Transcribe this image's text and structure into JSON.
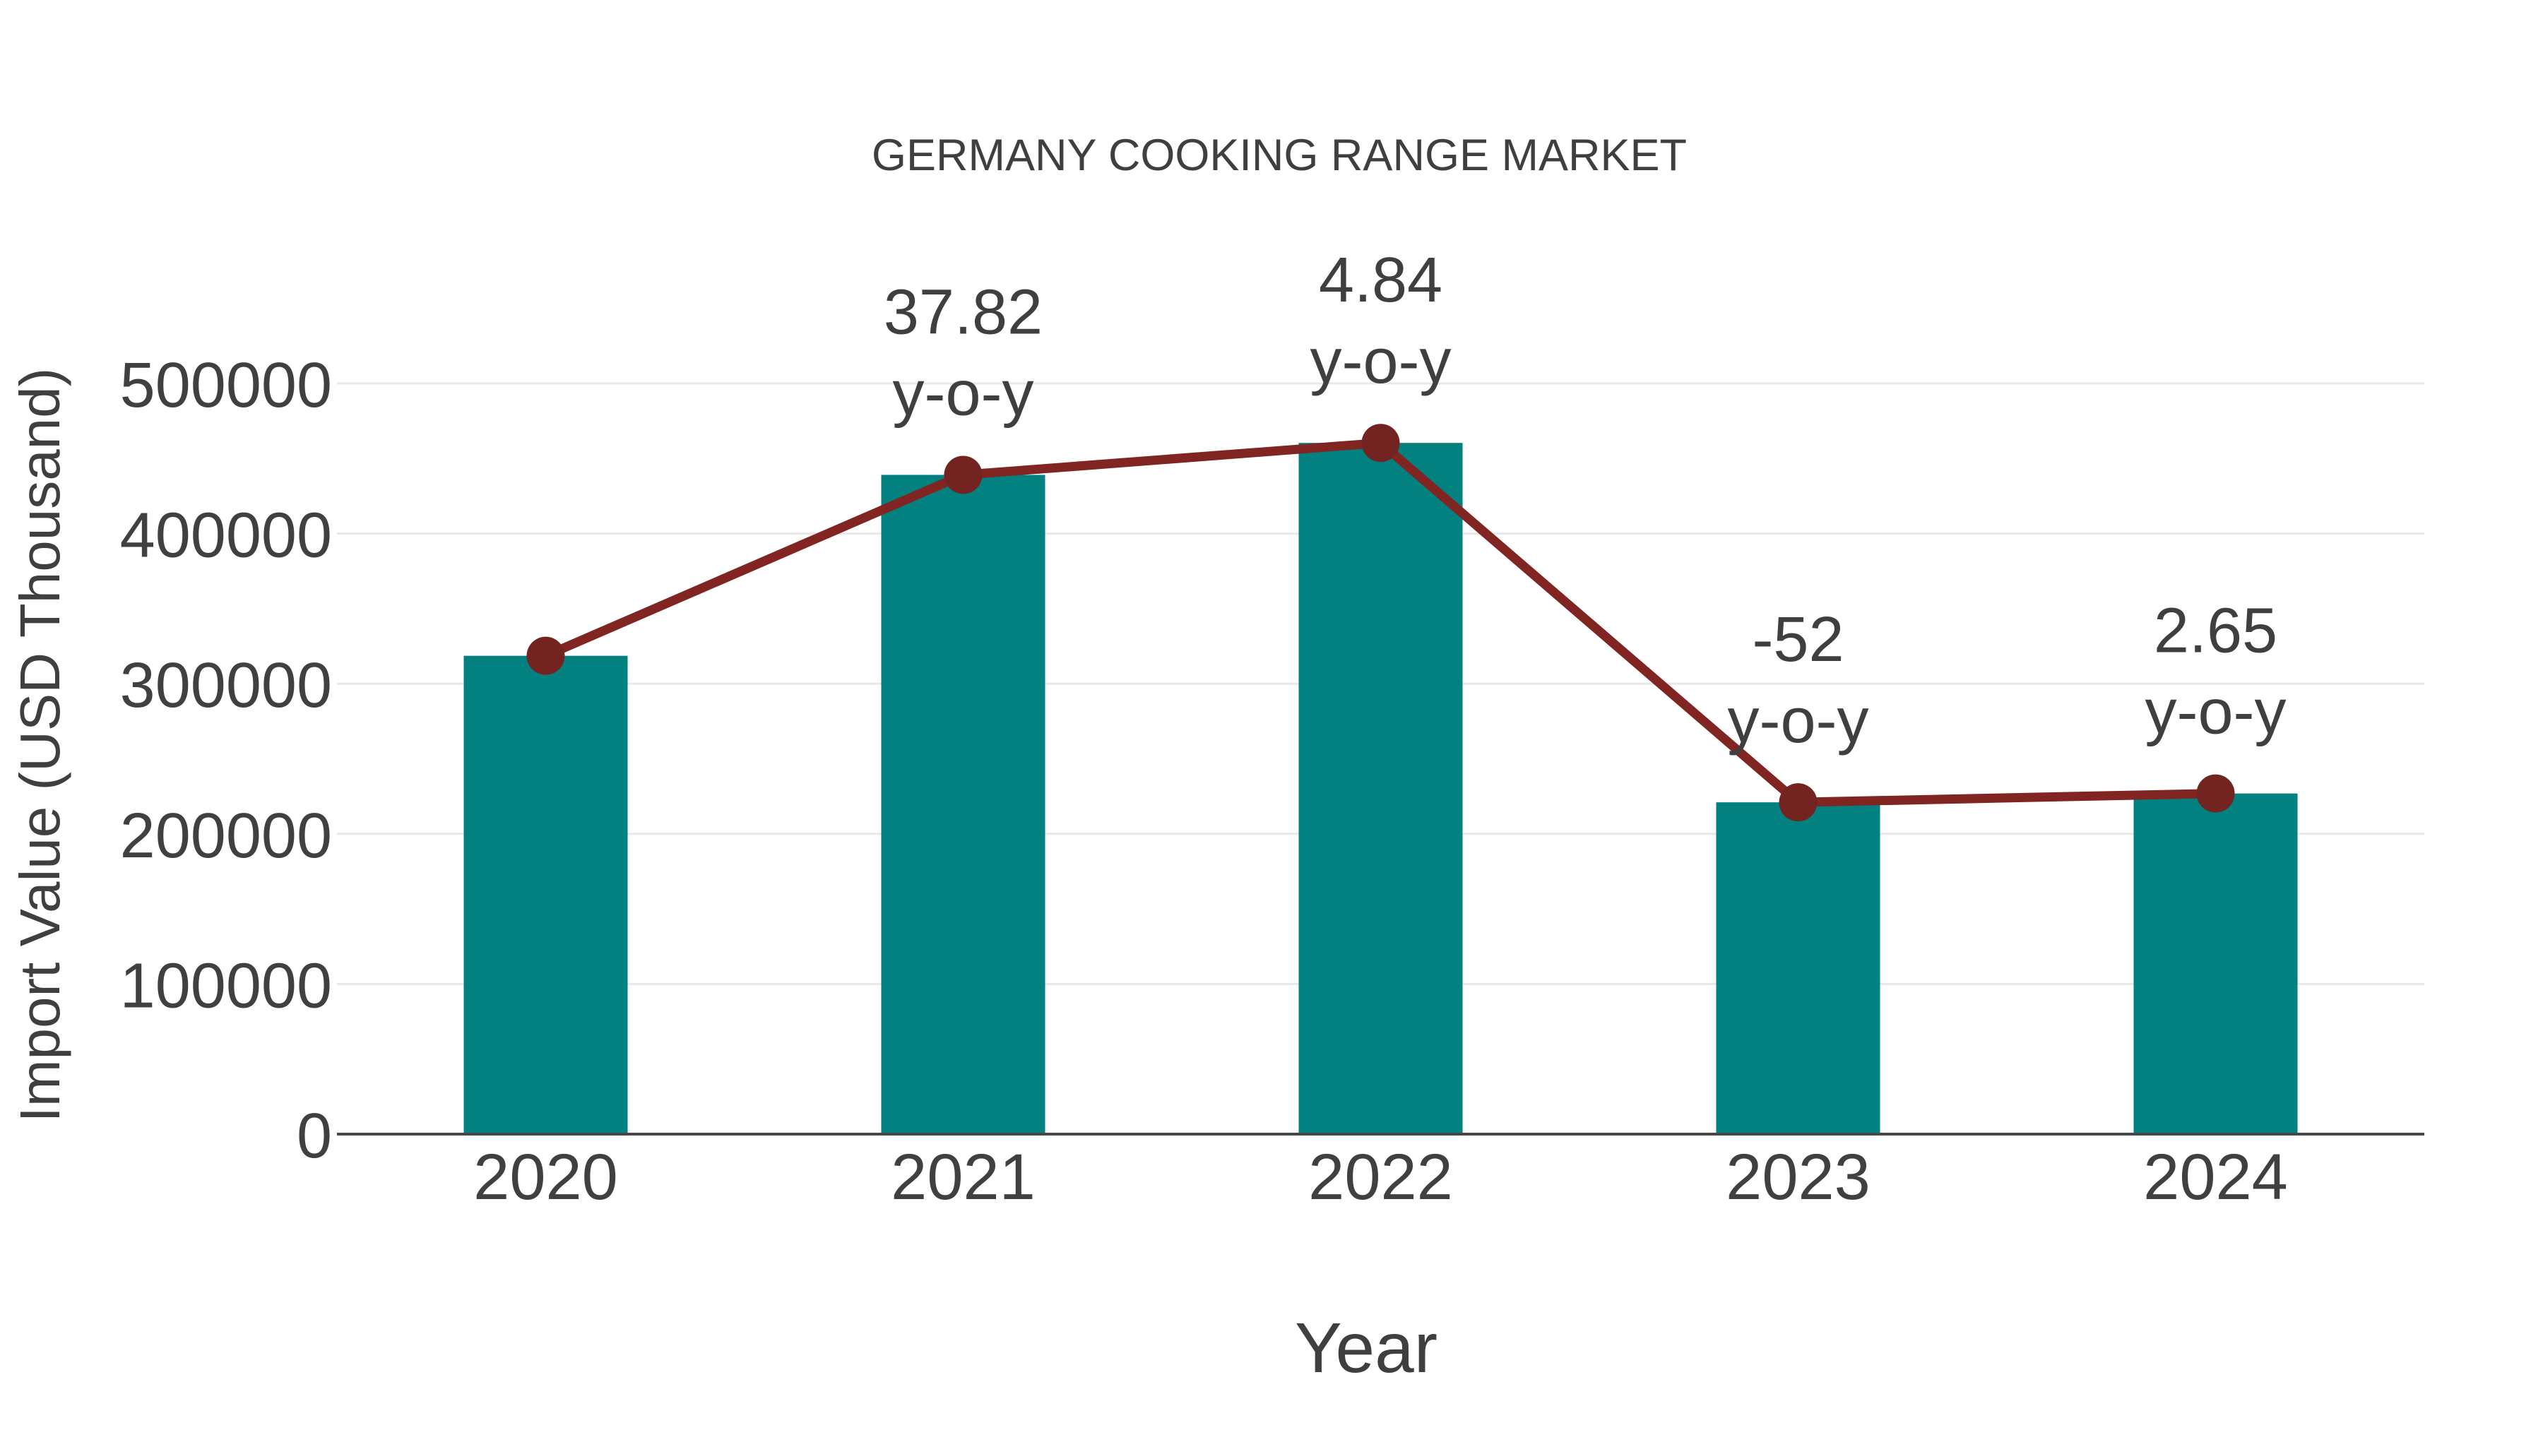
{
  "chart_data": {
    "type": "bar",
    "title": "GERMANY COOKING RANGE MARKET",
    "xlabel": "Year",
    "ylabel": "Import Value (USD Thousand)",
    "categories": [
      "2020",
      "2021",
      "2022",
      "2023",
      "2024"
    ],
    "series": [
      {
        "name": "Import Value (USD Thousand)",
        "type": "bar",
        "color": "#038181",
        "values": [
          318600,
          439100,
          460400,
          221000,
          226900
        ]
      },
      {
        "name": "y-o-y trend",
        "type": "line",
        "color": "#802522",
        "marker_color": "#732420",
        "values": [
          318600,
          439100,
          460400,
          221000,
          226900
        ]
      }
    ],
    "annotations": [
      {
        "category": "2021",
        "value_label": "37.82",
        "sub_label": "y-o-y"
      },
      {
        "category": "2022",
        "value_label": "4.84",
        "sub_label": "y-o-y"
      },
      {
        "category": "2023",
        "value_label": "-52",
        "sub_label": "y-o-y"
      },
      {
        "category": "2024",
        "value_label": "2.65",
        "sub_label": "y-o-y"
      }
    ],
    "ylim": [
      0,
      500000
    ],
    "yticks": [
      0,
      100000,
      200000,
      300000,
      400000,
      500000
    ],
    "grid": true,
    "legend_position": "none",
    "colors": {
      "text": "#3f3f3f",
      "tick_text": "#404040",
      "gridline": "#e8e8e8",
      "axis_line": "#474747",
      "background": "#ffffff"
    }
  }
}
